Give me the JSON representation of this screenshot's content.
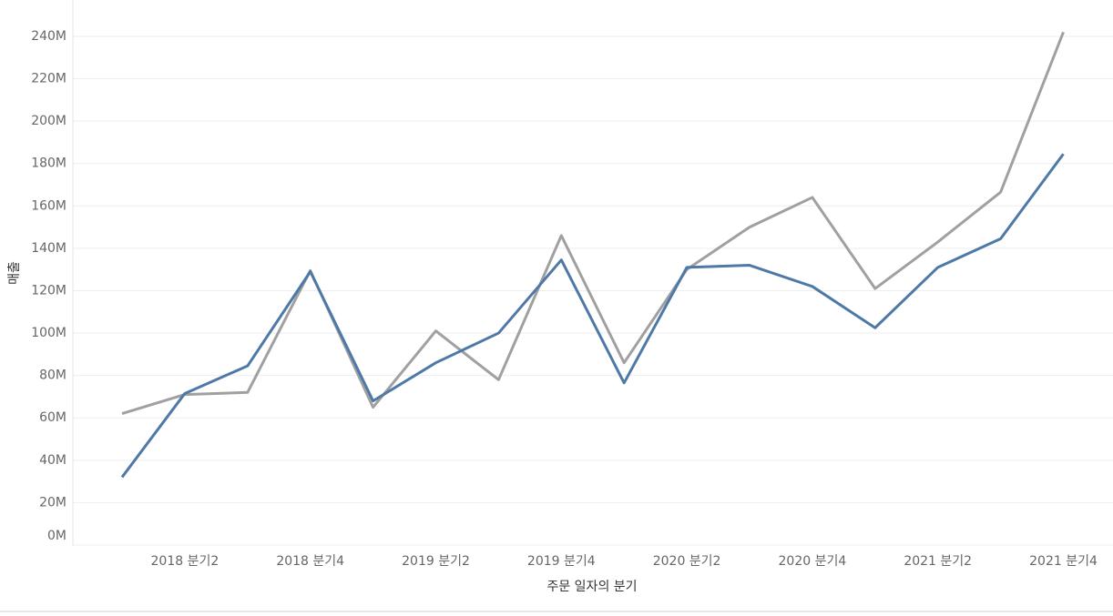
{
  "chart_data": {
    "type": "line",
    "x_label": "주문 일자의 분기",
    "y_label": "매출",
    "categories": [
      null,
      "2018 분기2",
      null,
      "2018 분기4",
      null,
      "2019 분기2",
      null,
      "2019 분기4",
      null,
      "2020 분기2",
      null,
      "2020 분기4",
      null,
      "2021 분기2",
      null,
      "2021 분기4"
    ],
    "series": [
      {
        "color": "#a0a0a0",
        "values": [
          62000000,
          71000000,
          72000000,
          129500000,
          65000000,
          101000000,
          78000000,
          146000000,
          86000000,
          130000000,
          150000000,
          164000000,
          121000000,
          143000000,
          166500000,
          242000000
        ]
      },
      {
        "color": "#4e79a7",
        "values": [
          32000000,
          71500000,
          84500000,
          129000000,
          68000000,
          86000000,
          100000000,
          134500000,
          76500000,
          131000000,
          132000000,
          122000000,
          102500000,
          131000000,
          144500000,
          184500000
        ]
      }
    ],
    "ylim": [
      0,
      255000000
    ],
    "yticks": [
      {
        "value": 0,
        "label": "0M"
      },
      {
        "value": 20000000,
        "label": "20M"
      },
      {
        "value": 40000000,
        "label": "40M"
      },
      {
        "value": 60000000,
        "label": "60M"
      },
      {
        "value": 80000000,
        "label": "80M"
      },
      {
        "value": 100000000,
        "label": "100M"
      },
      {
        "value": 120000000,
        "label": "120M"
      },
      {
        "value": 140000000,
        "label": "140M"
      },
      {
        "value": 160000000,
        "label": "160M"
      },
      {
        "value": 180000000,
        "label": "180M"
      },
      {
        "value": 200000000,
        "label": "200M"
      },
      {
        "value": 220000000,
        "label": "220M"
      },
      {
        "value": 240000000,
        "label": "240M"
      }
    ],
    "grid": true
  }
}
